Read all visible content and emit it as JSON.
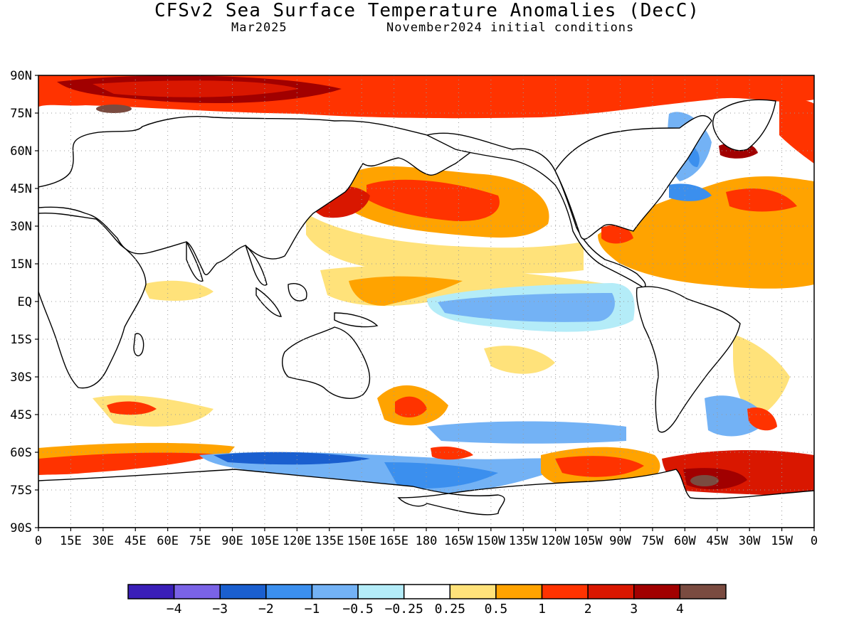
{
  "title": "CFSv2 Sea Surface Temperature Anomalies (DecC)",
  "valid_month": "Mar2025",
  "initial_conditions": "November2024 initial conditions",
  "lat_labels": [
    "90N",
    "75N",
    "60N",
    "45N",
    "30N",
    "15N",
    "EQ",
    "15S",
    "30S",
    "45S",
    "60S",
    "75S",
    "90S"
  ],
  "lon_labels": [
    "0",
    "15E",
    "30E",
    "45E",
    "60E",
    "75E",
    "90E",
    "105E",
    "120E",
    "135E",
    "150E",
    "165E",
    "180",
    "165W",
    "150W",
    "135W",
    "120W",
    "105W",
    "90W",
    "75W",
    "60W",
    "45W",
    "30W",
    "15W",
    "0"
  ],
  "colorbar": {
    "colors": [
      "#3a1fb8",
      "#7a63e6",
      "#1a5fcf",
      "#3b8fee",
      "#73b2f5",
      "#b4ecf8",
      "#ffffff",
      "#ffe27a",
      "#ffa300",
      "#ff3300",
      "#d91700",
      "#a10000",
      "#7a4b40"
    ],
    "tick_labels": [
      "-4",
      "-3",
      "-2",
      "-1",
      "-0.5",
      "-0.25",
      "0.25",
      "0.5",
      "1",
      "2",
      "3",
      "4"
    ]
  },
  "anomaly_regions": [
    {
      "name": "Arctic Ocean",
      "value": "2 to 3"
    },
    {
      "name": "North Pacific",
      "value": "1 to 2"
    },
    {
      "name": "Equatorial Pacific",
      "value": "-0.5 to -1"
    },
    {
      "name": "North Atlantic",
      "value": "0.5 to 2"
    },
    {
      "name": "Southern Ocean (Pacific sector)",
      "value": "-1 to -2"
    },
    {
      "name": "Southern Ocean (Atlantic sector)",
      "value": "1 to 3"
    }
  ]
}
